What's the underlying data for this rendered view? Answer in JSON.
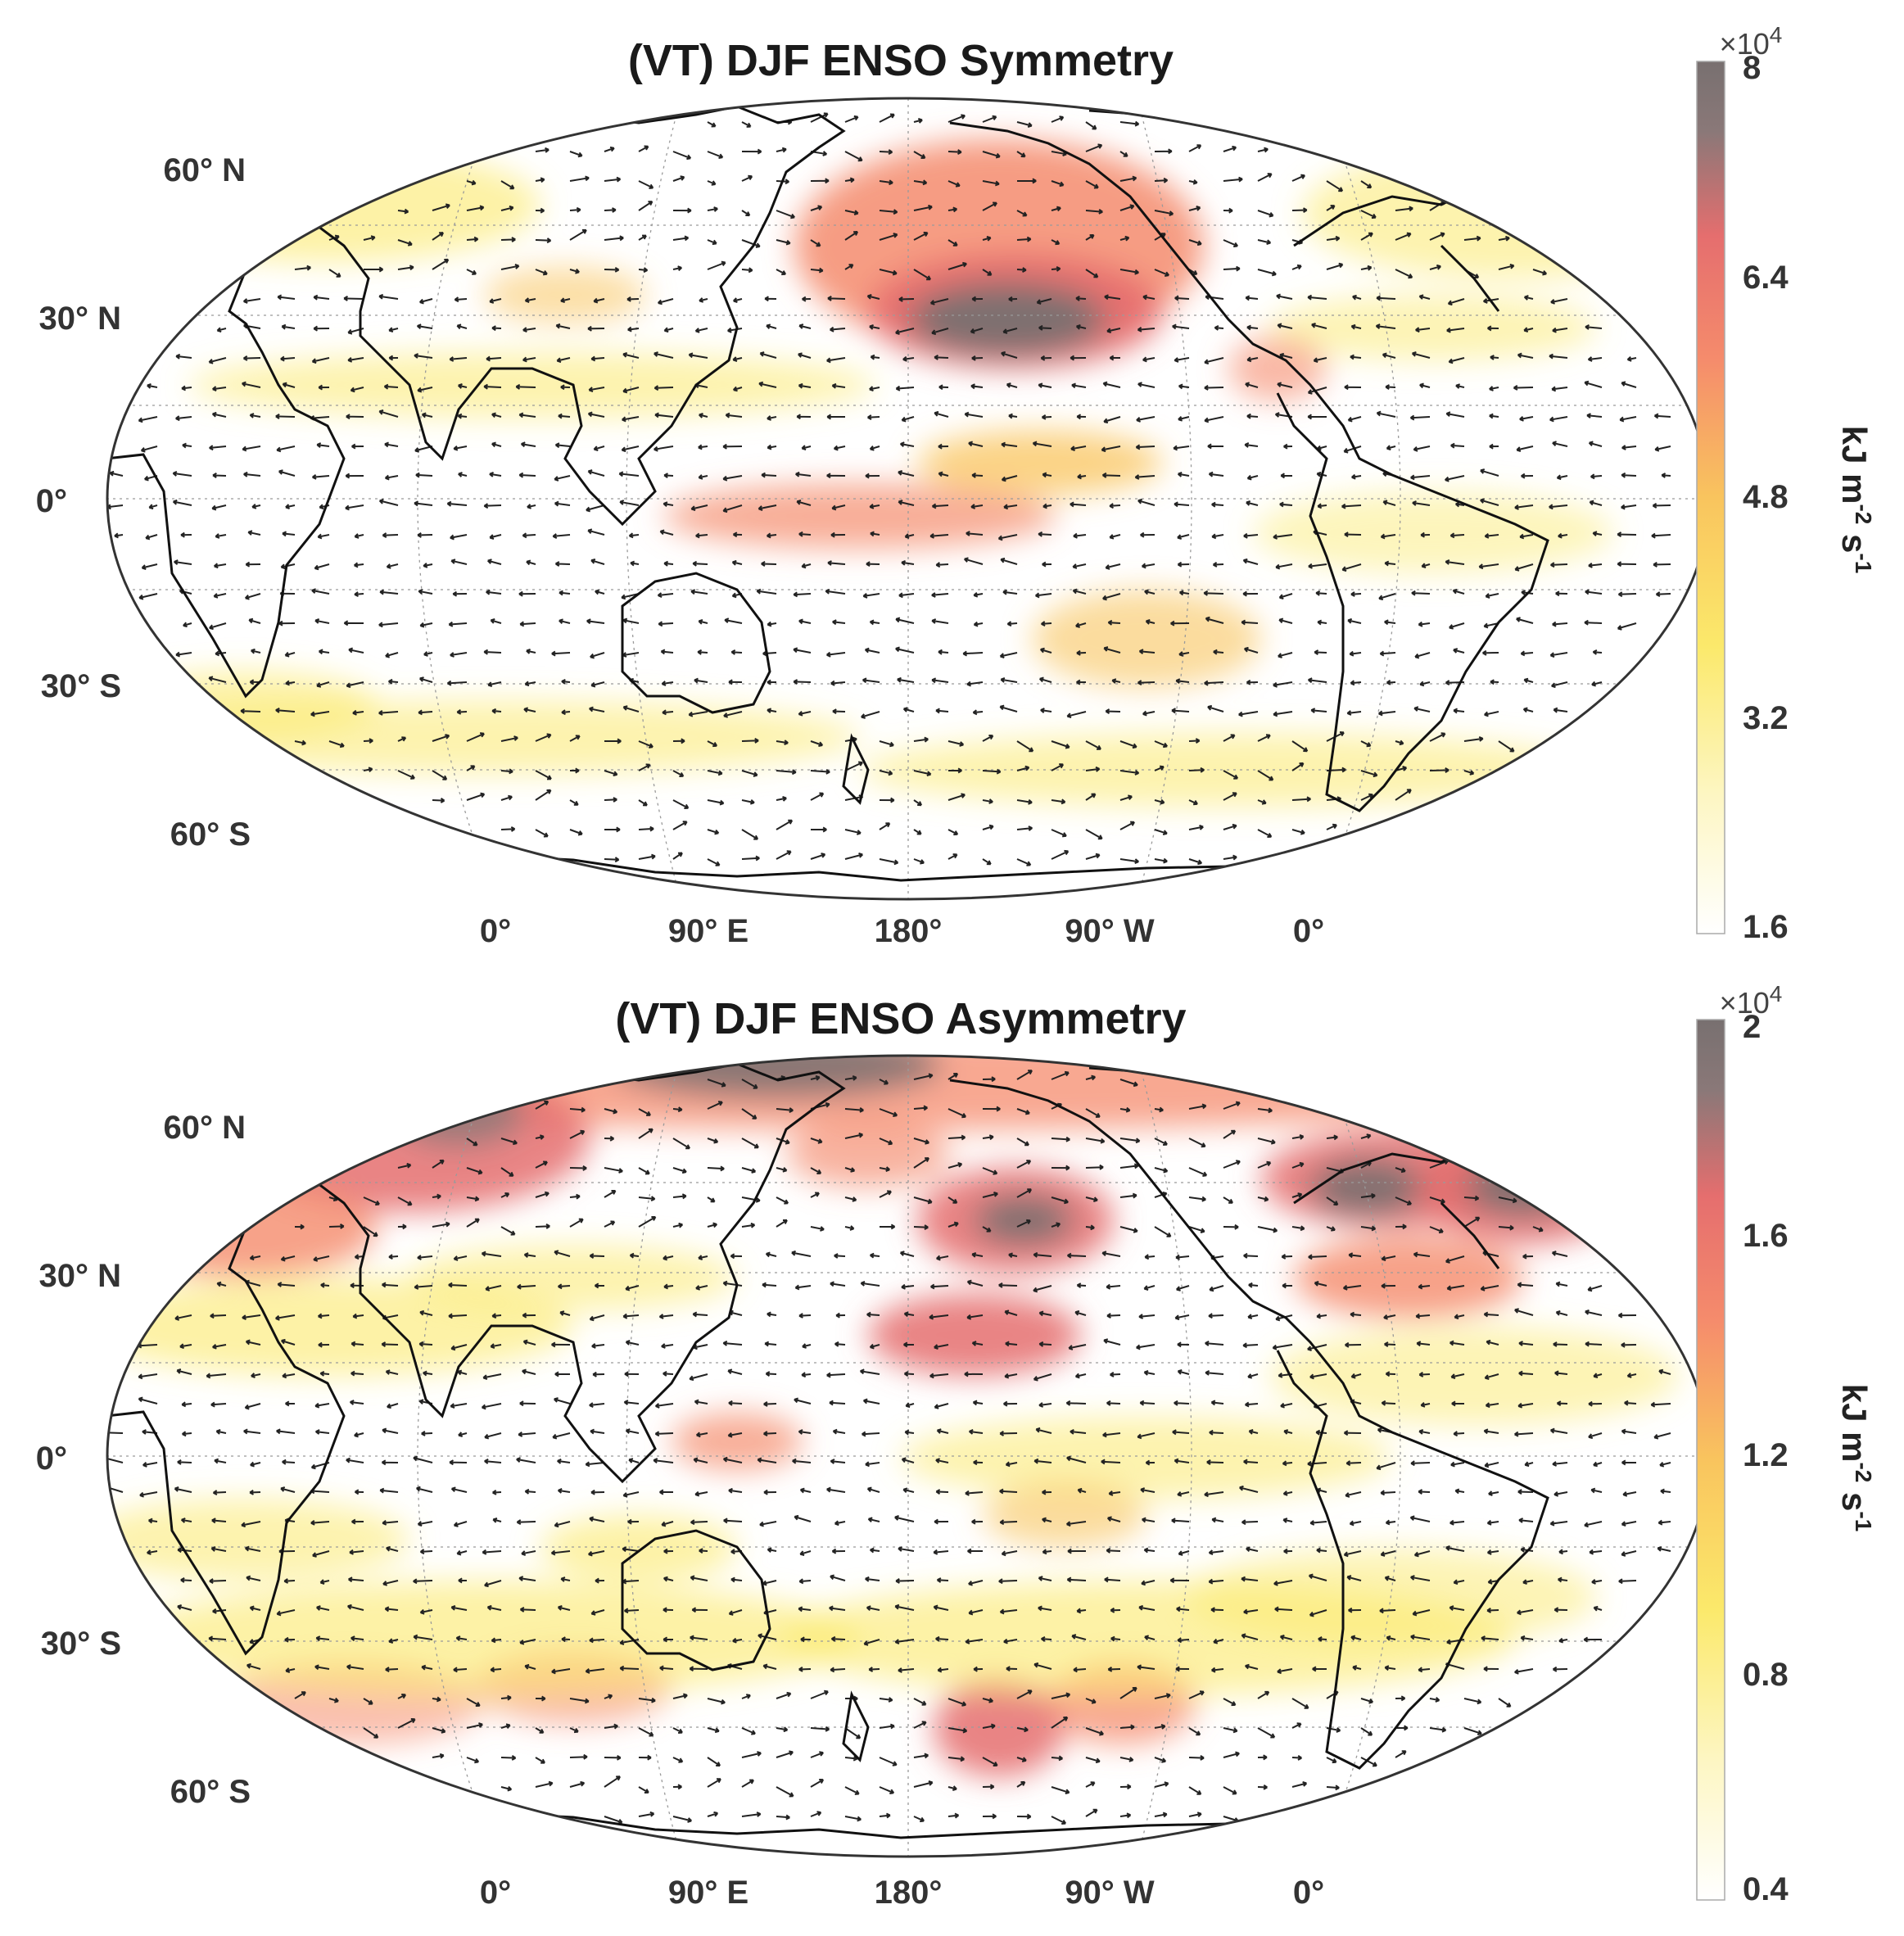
{
  "panels": [
    {
      "title": "(VT) DJF ENSO Symmetry",
      "colorbar": {
        "unit": "kJ m",
        "unit_sup1": "-2",
        "unit_mid": " s",
        "unit_sup2": "-1",
        "multiplier_base": "×10",
        "multiplier_exp": "4",
        "ticks": [
          "8",
          "6.4",
          "4.8",
          "3.2",
          "1.6"
        ],
        "tick_values": [
          8,
          6.4,
          4.8,
          3.2,
          1.6
        ],
        "range": [
          1.6,
          8
        ]
      },
      "lat_labels": [
        "60° N",
        "30° N",
        "0°",
        "30° S",
        "60° S"
      ],
      "lon_labels": [
        "0°",
        "90° E",
        "180°",
        "90° W",
        "0°"
      ]
    },
    {
      "title": "(VT) DJF ENSO Asymmetry",
      "colorbar": {
        "unit": "kJ m",
        "unit_sup1": "-2",
        "unit_mid": " s",
        "unit_sup2": "-1",
        "multiplier_base": "×10",
        "multiplier_exp": "4",
        "ticks": [
          "2",
          "1.6",
          "1.2",
          "0.8",
          "0.4"
        ],
        "tick_values": [
          2,
          1.6,
          1.2,
          0.8,
          0.4
        ],
        "range": [
          0.4,
          2
        ]
      },
      "lat_labels": [
        "60° N",
        "30° N",
        "0°",
        "30° S",
        "60° S"
      ],
      "lon_labels": [
        "0°",
        "90° E",
        "180°",
        "90° W",
        "0°"
      ]
    }
  ],
  "colormap": [
    "#ffffff",
    "#fdf6c2",
    "#fbe96b",
    "#f9c45e",
    "#f58b6c",
    "#e56e6e",
    "#8a7878",
    "#787070"
  ],
  "map_projection": "Robinson, centered on 180° (Pacific-centered)",
  "overlay": "vector arrows of energy transport (VT)"
}
